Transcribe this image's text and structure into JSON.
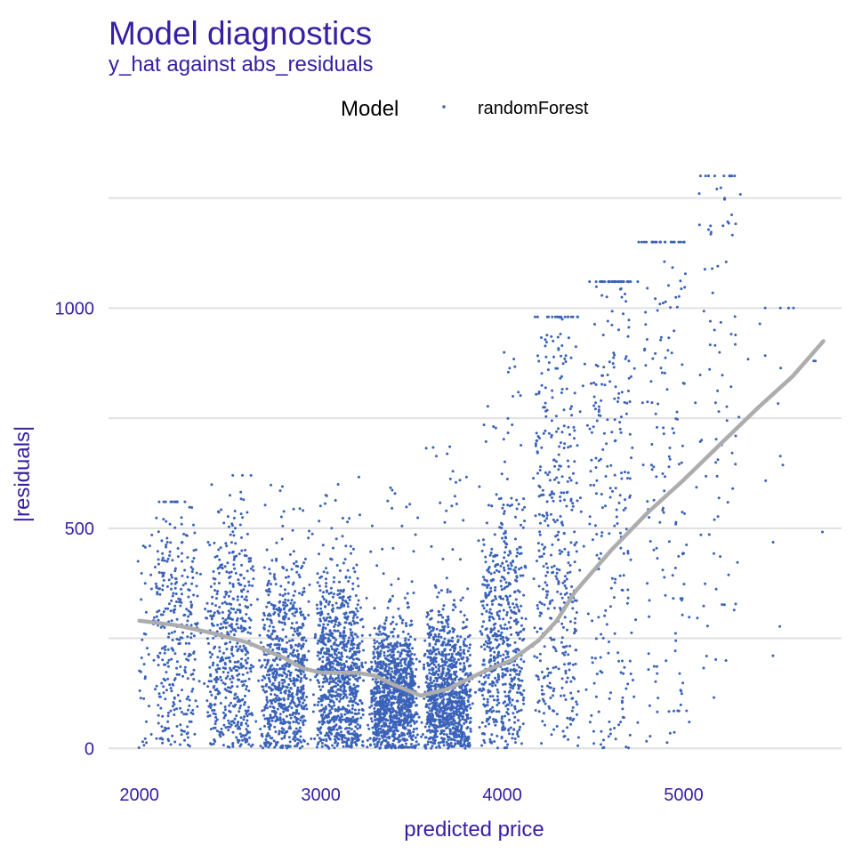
{
  "colors": {
    "text": "#371ea3",
    "point": "#3a62b8",
    "smooth": "#adadad",
    "grid": "#e0e0e0"
  },
  "chart_data": {
    "type": "scatter",
    "title": "Model diagnostics",
    "subtitle": "y_hat against abs_residuals",
    "xlabel": "predicted price",
    "ylabel": "|residuals|",
    "xlim": [
      1830,
      5870
    ],
    "ylim": [
      -60,
      1330
    ],
    "x_ticks": [
      2000,
      3000,
      4000,
      5000
    ],
    "y_ticks": [
      0,
      500,
      1000
    ],
    "y_minor_grid": [
      250,
      750,
      1250
    ],
    "grid": true,
    "legend": {
      "title": "Model",
      "position": "top",
      "entries": [
        {
          "name": "randomForest",
          "color": "#3a62b8"
        }
      ]
    },
    "series": [
      {
        "name": "randomForest",
        "kind": "points",
        "approx_count": 6000,
        "distribution": [
          {
            "x_center": 2000,
            "x_width": 120,
            "density": 60,
            "y_median": 230,
            "y_max": 460
          },
          {
            "x_center": 2200,
            "x_width": 200,
            "density": 320,
            "y_median": 240,
            "y_max": 560
          },
          {
            "x_center": 2500,
            "x_width": 200,
            "density": 520,
            "y_median": 220,
            "y_max": 620
          },
          {
            "x_center": 2800,
            "x_width": 200,
            "density": 720,
            "y_median": 170,
            "y_max": 600
          },
          {
            "x_center": 3100,
            "x_width": 200,
            "density": 900,
            "y_median": 160,
            "y_max": 630
          },
          {
            "x_center": 3400,
            "x_width": 200,
            "density": 1150,
            "y_median": 110,
            "y_max": 600
          },
          {
            "x_center": 3700,
            "x_width": 200,
            "density": 1000,
            "y_median": 120,
            "y_max": 700
          },
          {
            "x_center": 4000,
            "x_width": 200,
            "density": 600,
            "y_median": 230,
            "y_max": 900
          },
          {
            "x_center": 4300,
            "x_width": 200,
            "density": 420,
            "y_median": 420,
            "y_max": 980
          },
          {
            "x_center": 4600,
            "x_width": 200,
            "density": 260,
            "y_median": 560,
            "y_max": 1060
          },
          {
            "x_center": 4900,
            "x_width": 200,
            "density": 160,
            "y_median": 620,
            "y_max": 1150
          },
          {
            "x_center": 5200,
            "x_width": 200,
            "density": 90,
            "y_median": 700,
            "y_max": 1300
          },
          {
            "x_center": 5500,
            "x_width": 200,
            "density": 15,
            "y_median": 700,
            "y_max": 1000
          },
          {
            "x_center": 5750,
            "x_width": 80,
            "density": 4,
            "y_median": 800,
            "y_max": 880
          }
        ]
      },
      {
        "name": "smooth",
        "kind": "line",
        "x": [
          2000,
          2200,
          2400,
          2600,
          2800,
          2900,
          3000,
          3200,
          3300,
          3400,
          3550,
          3700,
          3900,
          4050,
          4200,
          4300,
          4400,
          4600,
          4800,
          5000,
          5200,
          5400,
          5600,
          5770
        ],
        "y": [
          290,
          280,
          262,
          240,
          205,
          182,
          172,
          172,
          165,
          145,
          120,
          135,
          175,
          200,
          245,
          290,
          355,
          450,
          535,
          610,
          690,
          770,
          845,
          925
        ]
      }
    ]
  }
}
